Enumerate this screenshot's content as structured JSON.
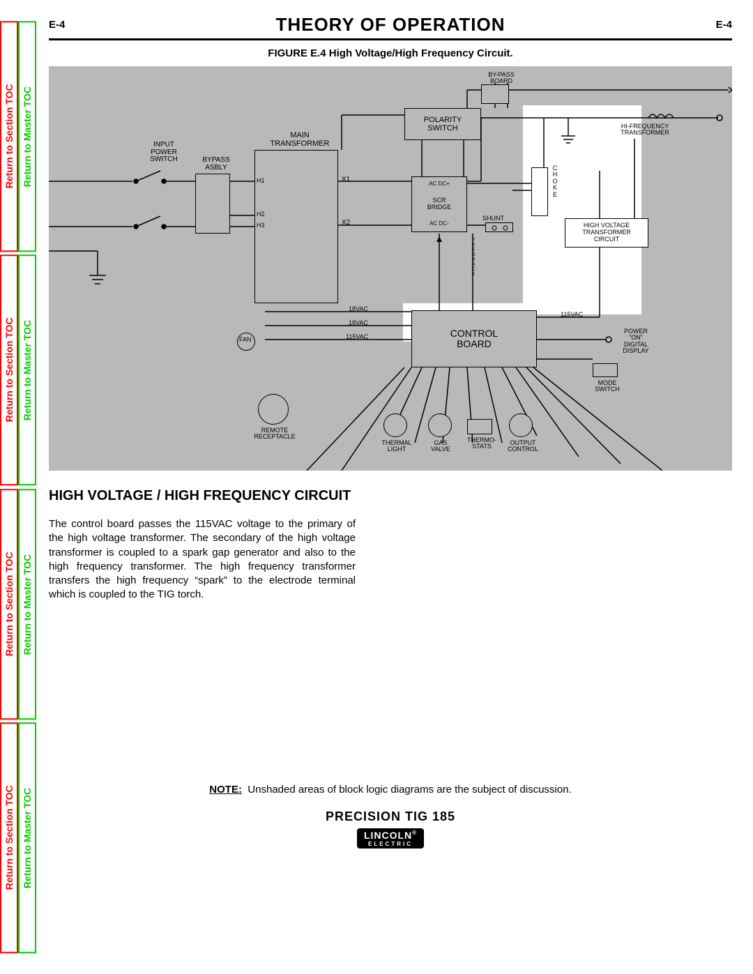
{
  "page_number": "E-4",
  "title": "THEORY OF OPERATION",
  "figure_caption": "FIGURE E.4 High Voltage/High Frequency Circuit.",
  "section_heading": "HIGH VOLTAGE / HIGH FREQUENCY CIRCUIT",
  "body_text": "The control board passes the 115VAC voltage to the primary of the high voltage transformer.  The secondary of the high voltage transformer is coupled to a spark gap generator and also to the high frequency transformer.  The high frequency transformer transfers the high frequency “spark” to the electrode terminal which is coupled to the TIG torch.",
  "note_label": "NOTE:",
  "note_text": "Unshaded areas of block logic diagrams are the subject of discussion.",
  "product": "PRECISION TIG 185",
  "logo_top": "LINCOLN",
  "logo_bot": "ELECTRIC",
  "tabs": {
    "section": "Return to Section TOC",
    "master": "Return to Master TOC"
  },
  "diagram": {
    "background": "#b9b9b9",
    "highlight_color": "#ffffff",
    "line_color": "#000000",
    "boxes": {
      "bypass_board": "BY-PASS\nBOARD",
      "polarity_switch": "POLARITY\nSWITCH",
      "main_transformer": "MAIN\nTRANSFORMER",
      "input_power_switch": "INPUT\nPOWER\nSWITCH",
      "bypass_asbly": "BYPASS\nASBLY",
      "scr_bridge_top": "AC    DC+",
      "scr_bridge_mid": "SCR\nBRIDGE",
      "scr_bridge_bot": "AC    DC-",
      "shunt": "SHUNT",
      "choke": "C\nH\nO\nK\nE",
      "hf_transformer": "HI-FREQUENCY\nTRANSFORMER",
      "hv_circuit": "HIGH VOLTAGE\nTRANSFORMER\nCIRCUIT",
      "control_board": "CONTROL\nBOARD",
      "fan": "FAN",
      "power_on": "POWER\n\"ON\"\nDIGITAL\nDISPLAY",
      "mode_switch": "MODE\nSWITCH",
      "remote_receptacle": "REMOTE\nRECEPTACLE",
      "thermal_light": "THERMAL\nLIGHT",
      "gas_valve": "GAS\nVALVE",
      "thermo_stats": "THERMO-\nSTATS",
      "output_control": "OUTPUT\nCONTROL"
    },
    "terminals": {
      "h1": "H1",
      "h2": "H2",
      "h3": "H3",
      "x1": "X1",
      "x2": "X2"
    },
    "voltages": {
      "v18_1": "18VAC",
      "v18_2": "18VAC",
      "v115_1": "115VAC",
      "v115_2": "115VAC"
    },
    "feedback": "F\nE\nE\nD\nB\nA\nC\nK"
  }
}
